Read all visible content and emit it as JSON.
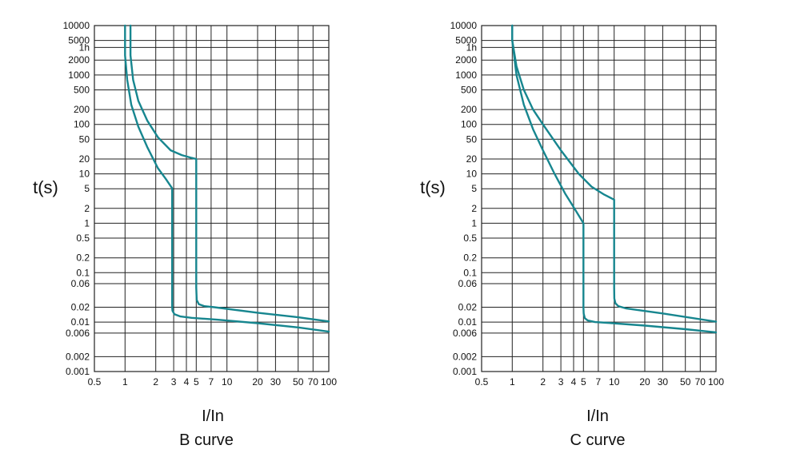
{
  "chart_data": [
    {
      "type": "line",
      "title": "B curve",
      "xlabel": "I/In",
      "ylabel": "t(s)",
      "x_scale": "log",
      "y_scale": "log",
      "xlim": [
        0.5,
        100
      ],
      "ylim": [
        0.001,
        10000
      ],
      "grid": true,
      "x_ticks": [
        {
          "value": 0.5,
          "label": "0.5"
        },
        {
          "value": 1,
          "label": "1"
        },
        {
          "value": 2,
          "label": "2"
        },
        {
          "value": 3,
          "label": "3"
        },
        {
          "value": 4,
          "label": "4"
        },
        {
          "value": 5,
          "label": "5"
        },
        {
          "value": 7,
          "label": "7"
        },
        {
          "value": 10,
          "label": "10"
        },
        {
          "value": 20,
          "label": "20"
        },
        {
          "value": 30,
          "label": "30"
        },
        {
          "value": 50,
          "label": "50"
        },
        {
          "value": 70,
          "label": "70"
        },
        {
          "value": 100,
          "label": "100"
        }
      ],
      "y_ticks": [
        {
          "value": 0.001,
          "label": "0.001"
        },
        {
          "value": 0.002,
          "label": "0.002"
        },
        {
          "value": 0.006,
          "label": "0.006"
        },
        {
          "value": 0.01,
          "label": "0.01"
        },
        {
          "value": 0.02,
          "label": "0.02"
        },
        {
          "value": 0.06,
          "label": "0.06"
        },
        {
          "value": 0.1,
          "label": "0.1"
        },
        {
          "value": 0.2,
          "label": "0.2"
        },
        {
          "value": 0.5,
          "label": "0.5"
        },
        {
          "value": 1,
          "label": "1"
        },
        {
          "value": 2,
          "label": "2"
        },
        {
          "value": 5,
          "label": "5"
        },
        {
          "value": 10,
          "label": "10"
        },
        {
          "value": 20,
          "label": "20"
        },
        {
          "value": 50,
          "label": "50"
        },
        {
          "value": 100,
          "label": "100"
        },
        {
          "value": 200,
          "label": "200"
        },
        {
          "value": 500,
          "label": "500"
        },
        {
          "value": 1000,
          "label": "1000"
        },
        {
          "value": 2000,
          "label": "2000"
        },
        {
          "value": 3600,
          "label": "1h"
        },
        {
          "value": 5000,
          "label": "5000"
        },
        {
          "value": 10000,
          "label": "10000"
        }
      ],
      "series": [
        {
          "x": [
            1.0,
            1.0,
            1.05,
            1.15,
            1.35,
            1.65,
            2.1,
            2.5,
            2.9,
            2.9,
            2.92,
            3.05,
            3.5,
            4.5,
            8.0,
            20.0,
            50.0,
            100.0
          ],
          "y": [
            10000,
            2500,
            800,
            250,
            90,
            35,
            13,
            8,
            5.1,
            0.02,
            0.017,
            0.0145,
            0.013,
            0.0122,
            0.0112,
            0.0095,
            0.0078,
            0.0064
          ]
        },
        {
          "x": [
            1.13,
            1.13,
            1.2,
            1.35,
            1.65,
            2.1,
            2.8,
            3.6,
            4.5,
            5.0,
            5.0,
            5.05,
            5.3,
            6.0,
            7.5,
            20.0,
            50.0,
            100.0
          ],
          "y": [
            10000,
            2500,
            800,
            300,
            120,
            55,
            30,
            24,
            21,
            20,
            0.05,
            0.028,
            0.023,
            0.021,
            0.02,
            0.0155,
            0.0125,
            0.0103
          ]
        }
      ]
    },
    {
      "type": "line",
      "title": "C curve",
      "xlabel": "I/In",
      "ylabel": "t(s)",
      "x_scale": "log",
      "y_scale": "log",
      "xlim": [
        0.5,
        100
      ],
      "ylim": [
        0.001,
        10000
      ],
      "grid": true,
      "x_ticks": [
        {
          "value": 0.5,
          "label": "0.5"
        },
        {
          "value": 1,
          "label": "1"
        },
        {
          "value": 2,
          "label": "2"
        },
        {
          "value": 3,
          "label": "3"
        },
        {
          "value": 4,
          "label": "4"
        },
        {
          "value": 5,
          "label": "5"
        },
        {
          "value": 7,
          "label": "7"
        },
        {
          "value": 10,
          "label": "10"
        },
        {
          "value": 20,
          "label": "20"
        },
        {
          "value": 30,
          "label": "30"
        },
        {
          "value": 50,
          "label": "50"
        },
        {
          "value": 70,
          "label": "70"
        },
        {
          "value": 100,
          "label": "100"
        }
      ],
      "y_ticks": [
        {
          "value": 0.001,
          "label": "0.001"
        },
        {
          "value": 0.002,
          "label": "0.002"
        },
        {
          "value": 0.006,
          "label": "0.006"
        },
        {
          "value": 0.01,
          "label": "0.01"
        },
        {
          "value": 0.02,
          "label": "0.02"
        },
        {
          "value": 0.06,
          "label": "0.06"
        },
        {
          "value": 0.1,
          "label": "0.1"
        },
        {
          "value": 0.2,
          "label": "0.2"
        },
        {
          "value": 0.5,
          "label": "0.5"
        },
        {
          "value": 1,
          "label": "1"
        },
        {
          "value": 2,
          "label": "2"
        },
        {
          "value": 5,
          "label": "5"
        },
        {
          "value": 10,
          "label": "10"
        },
        {
          "value": 20,
          "label": "20"
        },
        {
          "value": 50,
          "label": "50"
        },
        {
          "value": 100,
          "label": "100"
        },
        {
          "value": 200,
          "label": "200"
        },
        {
          "value": 500,
          "label": "500"
        },
        {
          "value": 1000,
          "label": "1000"
        },
        {
          "value": 2000,
          "label": "2000"
        },
        {
          "value": 3600,
          "label": "1h"
        },
        {
          "value": 5000,
          "label": "5000"
        },
        {
          "value": 10000,
          "label": "10000"
        }
      ],
      "series": [
        {
          "x": [
            1.0,
            1.0,
            1.1,
            1.3,
            1.6,
            2.0,
            2.6,
            3.3,
            4.2,
            5.0,
            5.0,
            5.02,
            5.15,
            5.5,
            6.5,
            8.5,
            20.0,
            50.0,
            100.0
          ],
          "y": [
            10000,
            5000,
            1000,
            250,
            80,
            30,
            10,
            4,
            1.8,
            1.0,
            0.02,
            0.015,
            0.012,
            0.0108,
            0.01,
            0.0097,
            0.0085,
            0.0072,
            0.0062
          ]
        },
        {
          "x": [
            1.0,
            1.0,
            1.1,
            1.3,
            1.6,
            2.0,
            3.0,
            4.5,
            6.0,
            8.0,
            10.0,
            10.0,
            10.05,
            10.3,
            11.0,
            13.0,
            30.0,
            100.0
          ],
          "y": [
            10000,
            5000,
            1500,
            500,
            200,
            100,
            30,
            10,
            5.5,
            3.8,
            3.0,
            0.05,
            0.03,
            0.024,
            0.021,
            0.019,
            0.015,
            0.0102
          ]
        }
      ]
    }
  ]
}
